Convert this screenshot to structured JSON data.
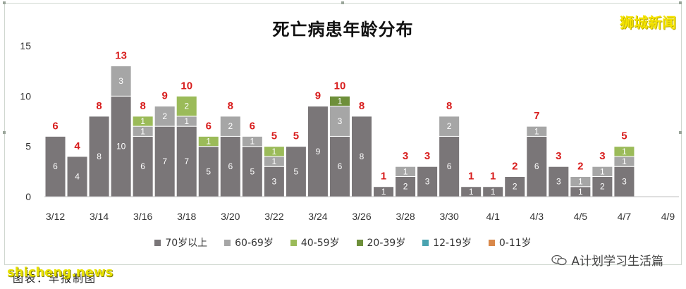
{
  "title": "死亡病患年龄分布",
  "brand_top": "狮城新闻",
  "watermark": "shicheng.news",
  "caption": "图表：早报制图",
  "wechat_label": "A计划学习生活篇",
  "colors": {
    "70岁以上": "#7a7678",
    "60-69岁": "#a6a6a6",
    "40-59岁": "#9bbb59",
    "20-39岁": "#6e8f3a",
    "12-19岁": "#4aa3b0",
    "0-11岁": "#d9884a",
    "total_label": "#d81e1e"
  },
  "chart_data": {
    "type": "bar",
    "stacked": true,
    "title": "死亡病患年龄分布",
    "ylim": [
      0,
      15
    ],
    "yticks": [
      0,
      5,
      10,
      15
    ],
    "grid": false,
    "legend_position": "bottom",
    "categories": [
      "3/12",
      "3/13",
      "3/14",
      "3/15",
      "3/16",
      "3/17",
      "3/18",
      "3/19",
      "3/20",
      "3/21",
      "3/22",
      "3/23",
      "3/24",
      "3/25",
      "3/26",
      "3/27",
      "3/28",
      "3/29",
      "3/30",
      "3/31",
      "4/1",
      "4/2",
      "4/3",
      "4/4",
      "4/5",
      "4/6",
      "4/7",
      "4/8",
      "4/9"
    ],
    "xtick_labels": [
      "3/12",
      "3/14",
      "3/16",
      "3/18",
      "3/20",
      "3/22",
      "3/24",
      "3/26",
      "3/28",
      "3/30",
      "4/1",
      "4/3",
      "4/5",
      "4/7",
      "4/9"
    ],
    "totals": [
      6,
      4,
      8,
      13,
      8,
      9,
      10,
      6,
      8,
      6,
      5,
      5,
      9,
      10,
      8,
      1,
      3,
      3,
      8,
      1,
      1,
      2,
      7,
      3,
      2,
      3,
      5,
      null,
      null
    ],
    "series": [
      {
        "name": "70岁以上",
        "values": [
          6,
          4,
          8,
          10,
          6,
          7,
          7,
          5,
          6,
          5,
          3,
          5,
          9,
          6,
          8,
          1,
          2,
          3,
          6,
          1,
          1,
          2,
          6,
          3,
          1,
          2,
          3,
          0,
          0
        ]
      },
      {
        "name": "60-69岁",
        "values": [
          0,
          0,
          0,
          3,
          1,
          2,
          1,
          0,
          2,
          1,
          1,
          0,
          0,
          3,
          0,
          0,
          1,
          0,
          2,
          0,
          0,
          0,
          1,
          0,
          1,
          1,
          1,
          0,
          0
        ]
      },
      {
        "name": "40-59岁",
        "values": [
          0,
          0,
          0,
          0,
          1,
          0,
          2,
          1,
          0,
          0,
          1,
          0,
          0,
          0,
          0,
          0,
          0,
          0,
          0,
          0,
          0,
          0,
          0,
          0,
          0,
          0,
          1,
          0,
          0
        ]
      },
      {
        "name": "20-39岁",
        "values": [
          0,
          0,
          0,
          0,
          0,
          0,
          0,
          0,
          0,
          0,
          0,
          0,
          0,
          1,
          0,
          0,
          0,
          0,
          0,
          0,
          0,
          0,
          0,
          0,
          0,
          0,
          0,
          0,
          0
        ]
      },
      {
        "name": "12-19岁",
        "values": [
          0,
          0,
          0,
          0,
          0,
          0,
          0,
          0,
          0,
          0,
          0,
          0,
          0,
          0,
          0,
          0,
          0,
          0,
          0,
          0,
          0,
          0,
          0,
          0,
          0,
          0,
          0,
          0,
          0
        ]
      },
      {
        "name": "0-11岁",
        "values": [
          0,
          0,
          0,
          0,
          0,
          0,
          0,
          0,
          0,
          0,
          0,
          0,
          0,
          0,
          0,
          0,
          0,
          0,
          0,
          0,
          0,
          0,
          0,
          0,
          0,
          0,
          0,
          0,
          0
        ]
      }
    ]
  }
}
